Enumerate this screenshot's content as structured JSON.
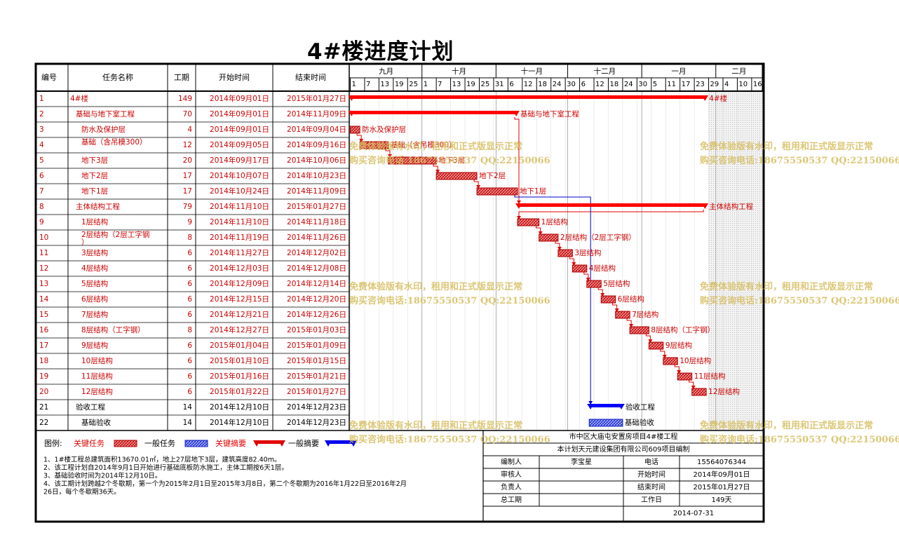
{
  "title": "4#楼进度计划",
  "headers": {
    "no": "编号",
    "name": "任务名称",
    "duration": "工期",
    "start": "开始时间",
    "end": "结束时间"
  },
  "timeline": {
    "start_date": "2014-09-01",
    "months": [
      "九月",
      "十月",
      "十一月",
      "十二月",
      "一月",
      "二月"
    ],
    "ticks": [
      "1",
      "7",
      "13",
      "19",
      "25",
      "1",
      "7",
      "13",
      "19",
      "25",
      "31",
      "6",
      "12",
      "18",
      "24",
      "30",
      "6",
      "12",
      "18",
      "24",
      "30",
      "5",
      "11",
      "17",
      "23",
      "29",
      "4",
      "10",
      "16"
    ]
  },
  "chart_data": {
    "type": "gantt",
    "x_range": [
      "2014-09-01",
      "2015-02-19"
    ],
    "tasks": [
      {
        "id": "1",
        "name": "4#楼",
        "duration": 149,
        "start": "2014年09月01日",
        "end": "2015年01月27日",
        "s": "2014-09-01",
        "e": "2015-01-27",
        "kind": "critical-summary",
        "label": "4#楼",
        "indent": 0,
        "red": true
      },
      {
        "id": "2",
        "name": "基础与地下室工程",
        "duration": 70,
        "start": "2014年09月01日",
        "end": "2014年11月09日",
        "s": "2014-09-01",
        "e": "2014-11-09",
        "kind": "critical-summary",
        "label": "基础与地下室工程",
        "indent": 1,
        "red": true
      },
      {
        "id": "3",
        "name": "防水及保护层",
        "duration": 4,
        "start": "2014年09月01日",
        "end": "2014年09月04日",
        "s": "2014-09-01",
        "e": "2014-09-04",
        "kind": "critical",
        "label": "防水及保护层",
        "indent": 2,
        "red": true
      },
      {
        "id": "4",
        "name": "基础（含吊模300）",
        "duration": 12,
        "start": "2014年09月05日",
        "end": "2014年09月16日",
        "s": "2014-09-05",
        "e": "2014-09-16",
        "kind": "critical",
        "label": "基础（含吊模300）",
        "indent": 2,
        "red": true
      },
      {
        "id": "5",
        "name": "地下3层",
        "duration": 20,
        "start": "2014年09月17日",
        "end": "2014年10月06日",
        "s": "2014-09-17",
        "e": "2014-10-06",
        "kind": "critical",
        "label": "地下3层",
        "indent": 2,
        "red": true
      },
      {
        "id": "6",
        "name": "地下2层",
        "duration": 17,
        "start": "2014年10月07日",
        "end": "2014年10月23日",
        "s": "2014-10-07",
        "e": "2014-10-23",
        "kind": "critical",
        "label": "地下2层",
        "indent": 2,
        "red": true
      },
      {
        "id": "7",
        "name": "地下1层",
        "duration": 17,
        "start": "2014年10月24日",
        "end": "2014年11月09日",
        "s": "2014-10-24",
        "e": "2014-11-09",
        "kind": "critical",
        "label": "地下1层",
        "indent": 2,
        "red": true
      },
      {
        "id": "8",
        "name": "主体结构工程",
        "duration": 79,
        "start": "2014年11月10日",
        "end": "2015年01月27日",
        "s": "2014-11-10",
        "e": "2015-01-27",
        "kind": "critical-summary",
        "label": "主体结构工程",
        "indent": 1,
        "red": true
      },
      {
        "id": "9",
        "name": "1层结构",
        "duration": 9,
        "start": "2014年11月10日",
        "end": "2014年11月18日",
        "s": "2014-11-10",
        "e": "2014-11-18",
        "kind": "critical",
        "label": "1层结构",
        "indent": 2,
        "red": true
      },
      {
        "id": "10",
        "name": "2层结构（2层工字钢）",
        "duration": 8,
        "start": "2014年11月19日",
        "end": "2014年11月26日",
        "s": "2014-11-19",
        "e": "2014-11-26",
        "kind": "critical",
        "label": "2层结构（2层工字钢）",
        "indent": 2,
        "red": true
      },
      {
        "id": "11",
        "name": "3层结构",
        "duration": 6,
        "start": "2014年11月27日",
        "end": "2014年12月02日",
        "s": "2014-11-27",
        "e": "2014-12-02",
        "kind": "critical",
        "label": "3层结构",
        "indent": 2,
        "red": true
      },
      {
        "id": "12",
        "name": "4层结构",
        "duration": 6,
        "start": "2014年12月03日",
        "end": "2014年12月08日",
        "s": "2014-12-03",
        "e": "2014-12-08",
        "kind": "critical",
        "label": "4层结构",
        "indent": 2,
        "red": true
      },
      {
        "id": "13",
        "name": "5层结构",
        "duration": 6,
        "start": "2014年12月09日",
        "end": "2014年12月14日",
        "s": "2014-12-09",
        "e": "2014-12-14",
        "kind": "critical",
        "label": "5层结构",
        "indent": 2,
        "red": true
      },
      {
        "id": "14",
        "name": "6层结构",
        "duration": 6,
        "start": "2014年12月15日",
        "end": "2014年12月20日",
        "s": "2014-12-15",
        "e": "2014-12-20",
        "kind": "critical",
        "label": "6层结构",
        "indent": 2,
        "red": true
      },
      {
        "id": "15",
        "name": "7层结构",
        "duration": 6,
        "start": "2014年12月21日",
        "end": "2014年12月26日",
        "s": "2014-12-21",
        "e": "2014-12-26",
        "kind": "critical",
        "label": "7层结构",
        "indent": 2,
        "red": true
      },
      {
        "id": "16",
        "name": "8层结构（工字钢）",
        "duration": 8,
        "start": "2014年12月27日",
        "end": "2015年01月03日",
        "s": "2014-12-27",
        "e": "2015-01-03",
        "kind": "critical",
        "label": "8层结构（工字钢）",
        "indent": 2,
        "red": true
      },
      {
        "id": "17",
        "name": "9层结构",
        "duration": 6,
        "start": "2015年01月04日",
        "end": "2015年01月09日",
        "s": "2015-01-04",
        "e": "2015-01-09",
        "kind": "critical",
        "label": "9层结构",
        "indent": 2,
        "red": true
      },
      {
        "id": "18",
        "name": "10层结构",
        "duration": 6,
        "start": "2015年01月10日",
        "end": "2015年01月15日",
        "s": "2015-01-10",
        "e": "2015-01-15",
        "kind": "critical",
        "label": "10层结构",
        "indent": 2,
        "red": true
      },
      {
        "id": "19",
        "name": "11层结构",
        "duration": 6,
        "start": "2015年01月16日",
        "end": "2015年01月21日",
        "s": "2015-01-16",
        "e": "2015-01-21",
        "kind": "critical",
        "label": "11层结构",
        "indent": 2,
        "red": true
      },
      {
        "id": "20",
        "name": "12层结构",
        "duration": 6,
        "start": "2015年01月22日",
        "end": "2015年01月27日",
        "s": "2015-01-22",
        "e": "2015-01-27",
        "kind": "critical",
        "label": "12层结构",
        "indent": 2,
        "red": true
      },
      {
        "id": "21",
        "name": "验收工程",
        "duration": 14,
        "start": "2014年12月10日",
        "end": "2014年12月23日",
        "s": "2014-12-10",
        "e": "2014-12-23",
        "kind": "normal-summary",
        "label": "验收工程",
        "indent": 1,
        "red": false
      },
      {
        "id": "22",
        "name": "基础验收",
        "duration": 14,
        "start": "2014年12月10日",
        "end": "2014年12月23日",
        "s": "2014-12-10",
        "e": "2014-12-23",
        "kind": "normal",
        "label": "基础验收",
        "indent": 2,
        "red": false
      }
    ],
    "links": [
      [
        "3",
        "4"
      ],
      [
        "4",
        "5"
      ],
      [
        "5",
        "6"
      ],
      [
        "6",
        "7"
      ],
      [
        "2",
        "8"
      ],
      [
        "8",
        "9"
      ],
      [
        "9",
        "10"
      ],
      [
        "10",
        "11"
      ],
      [
        "11",
        "12"
      ],
      [
        "12",
        "13"
      ],
      [
        "13",
        "14"
      ],
      [
        "14",
        "15"
      ],
      [
        "15",
        "16"
      ],
      [
        "16",
        "17"
      ],
      [
        "17",
        "18"
      ],
      [
        "18",
        "19"
      ],
      [
        "19",
        "20"
      ],
      [
        "7",
        "21"
      ]
    ],
    "hatched_from": "2015-01-29"
  },
  "legend": {
    "label": "图例:",
    "items": [
      "关键任务",
      "一般任务",
      "关键摘要",
      "一般摘要"
    ]
  },
  "notes": [
    "1、1#楼工程总建筑面积13670.01㎡，地上27层地下3层，建筑高度82.40m。",
    "2、该工程计划自2014年9月1日开始进行基础底板防水施工，主体工期按6天1层。",
    "3、基础验收时间为2014年12月10日。",
    "4、该工期计划跨越2个冬歇期，第一个为2015年2月1日至2015年3月8日，第二个冬歇期为2016年1月22日至2016年2月",
    "26日，每个冬歇期36天。"
  ],
  "info": {
    "project": "市中区大庙屯安置房项目4#楼工程",
    "org": "本计划天元建设集团有限公司609项目编制",
    "rows": [
      [
        "编制人",
        "李宝星",
        "电话",
        "15564076344"
      ],
      [
        "审核人",
        "",
        "开始时间",
        "2014年09月01日"
      ],
      [
        "负责人",
        "",
        "结束时间",
        "2015年01月27日"
      ],
      [
        "总工期",
        "",
        "工作日",
        "149天"
      ]
    ],
    "date": "2014-07-31"
  },
  "watermark": {
    "line1": "免费体验版有水印，租用和正式版显示正常",
    "line2": "购买咨询电话:18675550537 QQ:22150066"
  },
  "colors": {
    "critical": "#ff0000",
    "critical_fill": "#e85050",
    "normal": "#0000ff",
    "normal_fill": "#6a74ee",
    "task_text": "#cc0000",
    "watermark": "#d6bd5e"
  }
}
